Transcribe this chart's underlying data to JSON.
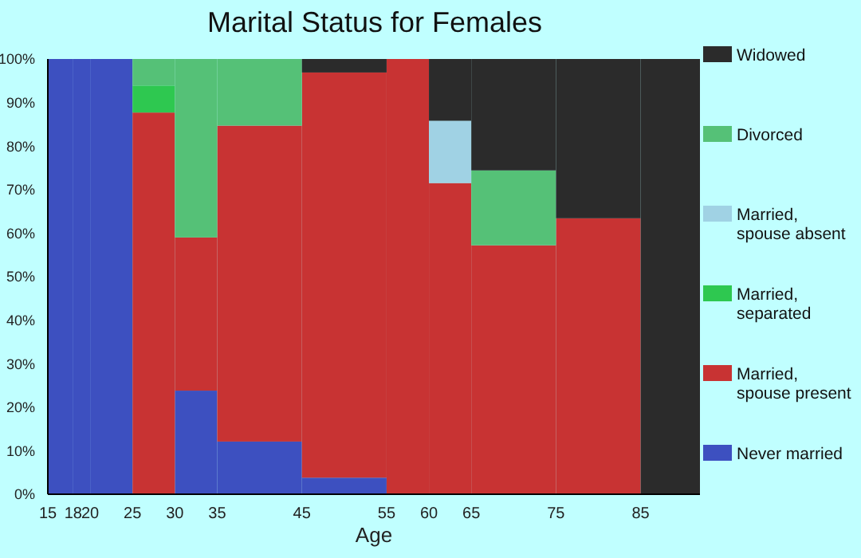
{
  "chart_data": {
    "type": "bar",
    "title": "Marital Status for Females",
    "xlabel": "Age",
    "stacked": true,
    "x": [
      16.5,
      19,
      22.5,
      27.5,
      32.5,
      40,
      50,
      57.5,
      62.5,
      70,
      80,
      88.5
    ],
    "series": [
      {
        "name": "Never married",
        "color": "#3d50c0",
        "values": [
          100,
          100,
          100,
          null,
          23.8,
          12.1,
          3.8,
          null,
          null,
          null,
          null,
          null
        ]
      },
      {
        "name": "Married, spouse present",
        "color": "#c83333",
        "values": [
          null,
          null,
          null,
          87.7,
          35.2,
          72.6,
          93.1,
          100,
          71.5,
          57.2,
          63.4,
          null
        ]
      },
      {
        "name": "Married, separated",
        "color": "#2ec850",
        "values": [
          null,
          null,
          null,
          6.2,
          null,
          null,
          null,
          null,
          null,
          null,
          null,
          null
        ]
      },
      {
        "name": "Married, spouse absent",
        "color": "#a0d2e4",
        "values": [
          null,
          null,
          null,
          null,
          null,
          null,
          null,
          null,
          14.3,
          null,
          null,
          null
        ]
      },
      {
        "name": "Divorced",
        "color": "#55c177",
        "values": [
          null,
          null,
          null,
          6.1,
          41,
          15.3,
          null,
          null,
          null,
          17.2,
          null,
          null
        ]
      },
      {
        "name": "Widowed",
        "color": "#2b2b2b",
        "values": [
          null,
          null,
          null,
          null,
          null,
          null,
          3.1,
          null,
          14.2,
          25.6,
          36.6,
          100
        ]
      }
    ],
    "xlim": [
      15,
      92
    ],
    "xticks": [
      15,
      18,
      20,
      25,
      30,
      35,
      45,
      55,
      60,
      65,
      75,
      85
    ],
    "ylim": [
      0,
      100
    ],
    "yticks": [
      {
        "value": 0,
        "label": "0%"
      },
      {
        "value": 10,
        "label": "10%"
      },
      {
        "value": 20,
        "label": "20%"
      },
      {
        "value": 30,
        "label": "30%"
      },
      {
        "value": 40,
        "label": "40%"
      },
      {
        "value": 50,
        "label": "50%"
      },
      {
        "value": 60,
        "label": "60%"
      },
      {
        "value": 70,
        "label": "70%"
      },
      {
        "value": 80,
        "label": "80%"
      },
      {
        "value": 90,
        "label": "90%"
      },
      {
        "value": 100,
        "label": "100%"
      }
    ],
    "legend": "right"
  }
}
